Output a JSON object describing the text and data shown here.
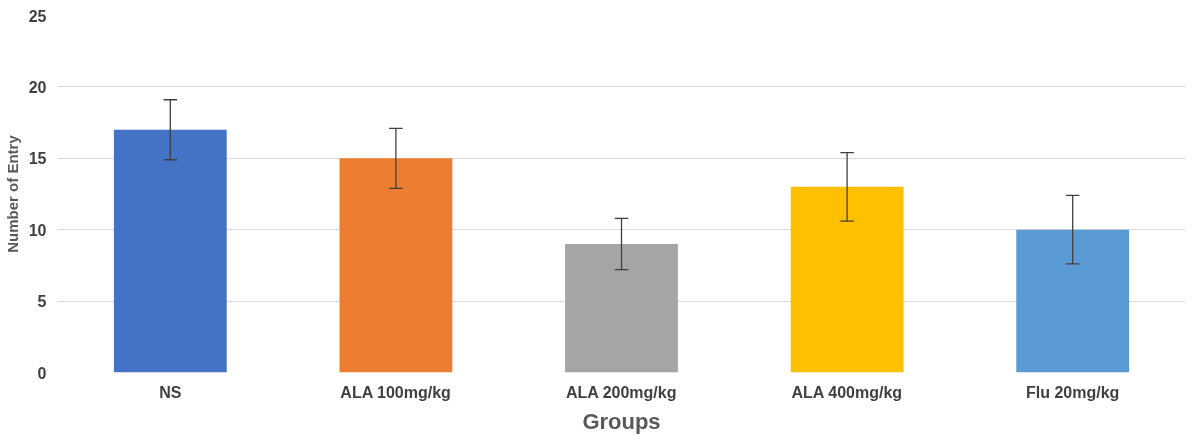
{
  "chart_data": {
    "type": "bar",
    "xlabel": "Groups",
    "ylabel": "Number of Entry",
    "categories": [
      "NS",
      "ALA 100mg/kg",
      "ALA 200mg/kg",
      "ALA 400mg/kg",
      "Flu 20mg/kg"
    ],
    "values": [
      17,
      15,
      9,
      13,
      10
    ],
    "errors": [
      2.1,
      2.1,
      1.8,
      2.4,
      2.4
    ],
    "colors": [
      "#4472c4",
      "#ed7d31",
      "#a5a5a5",
      "#ffc000",
      "#5b9bd5"
    ],
    "ylim": [
      0,
      25
    ],
    "yticks": [
      0,
      5,
      10,
      15,
      20,
      25
    ],
    "grid": "y"
  }
}
